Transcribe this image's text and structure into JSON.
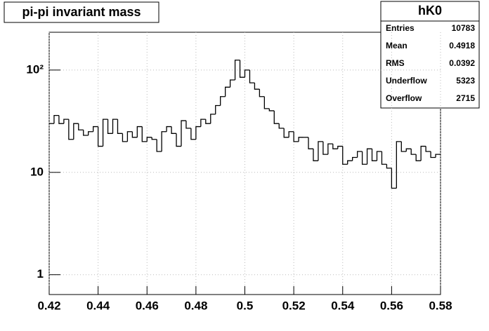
{
  "chart_data": {
    "type": "histogram",
    "title": "pi-pi invariant mass",
    "bins": [
      0.42,
      0.422,
      0.424,
      0.426,
      0.428,
      0.43,
      0.432,
      0.434,
      0.436,
      0.438,
      0.44,
      0.442,
      0.444,
      0.446,
      0.448,
      0.45,
      0.452,
      0.454,
      0.456,
      0.458,
      0.46,
      0.462,
      0.464,
      0.466,
      0.468,
      0.47,
      0.472,
      0.474,
      0.476,
      0.478,
      0.48,
      0.482,
      0.484,
      0.486,
      0.488,
      0.49,
      0.492,
      0.494,
      0.496,
      0.498,
      0.5,
      0.502,
      0.504,
      0.506,
      0.508,
      0.51,
      0.512,
      0.514,
      0.516,
      0.518,
      0.52,
      0.522,
      0.524,
      0.526,
      0.528,
      0.53,
      0.532,
      0.534,
      0.536,
      0.538,
      0.54,
      0.542,
      0.544,
      0.546,
      0.548,
      0.55,
      0.552,
      0.554,
      0.556,
      0.558,
      0.56,
      0.562,
      0.564,
      0.566,
      0.568,
      0.57,
      0.572,
      0.574,
      0.576,
      0.578,
      0.58
    ],
    "values": [
      30,
      36,
      30,
      33,
      21,
      30,
      26,
      23,
      25,
      28,
      18,
      33,
      24,
      33,
      24,
      20,
      25,
      22,
      28,
      20,
      22,
      21,
      16,
      25,
      28,
      24,
      18,
      32,
      27,
      21,
      28,
      33,
      30,
      37,
      45,
      55,
      68,
      80,
      125,
      85,
      100,
      75,
      65,
      55,
      42,
      40,
      30,
      27,
      22,
      25,
      20,
      22,
      22,
      17,
      13,
      20,
      15,
      19,
      17,
      18,
      12,
      13,
      14,
      16,
      12,
      17,
      13,
      16,
      12,
      11,
      7,
      20,
      16,
      17,
      15,
      13,
      18,
      16,
      14,
      15
    ],
    "color": "#000000",
    "log_y": true,
    "grid": true,
    "xlim": [
      0.42,
      0.58
    ],
    "xticks": [
      0.42,
      0.44,
      0.46,
      0.48,
      0.5,
      0.52,
      0.54,
      0.56,
      0.58
    ],
    "ylim": [
      0.64,
      234
    ],
    "yticks": [
      1,
      10,
      {
        "value": 100,
        "label": "10²"
      }
    ]
  },
  "stats": {
    "title": "hK0",
    "rows": [
      [
        "Entries",
        "10783"
      ],
      [
        "Mean",
        "0.4918"
      ],
      [
        "RMS",
        "0.0392"
      ],
      [
        "Underflow",
        "5323"
      ],
      [
        "Overflow",
        "2715"
      ]
    ]
  }
}
